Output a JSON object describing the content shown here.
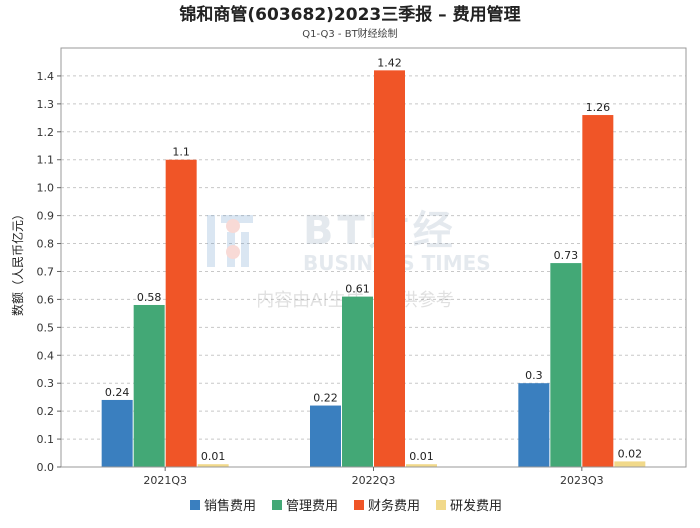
{
  "chart_data": {
    "type": "bar",
    "title": "锦和商管(603682)2023三季报 – 费用管理",
    "subtitle": "Q1-Q3 - BT财经绘制",
    "xlabel": "",
    "ylabel": "数额（人民币亿元）",
    "ylim": [
      0,
      1.5
    ],
    "yticks": [
      0.0,
      0.1,
      0.2,
      0.3,
      0.4,
      0.5,
      0.6,
      0.7,
      0.8,
      0.9,
      1.0,
      1.1,
      1.2,
      1.3,
      1.4
    ],
    "ytick_labels": [
      "0.0",
      "0.1",
      "0.2",
      "0.3",
      "0.4",
      "0.5",
      "0.6",
      "0.7",
      "0.8",
      "0.9",
      "1.0",
      "1.1",
      "1.2",
      "1.3",
      "1.4"
    ],
    "grid": true,
    "legend_position": "bottom",
    "categories": [
      "2021Q3",
      "2022Q3",
      "2023Q3"
    ],
    "series": [
      {
        "name": "销售费用",
        "color": "#3a7fbf",
        "values": [
          0.24,
          0.22,
          0.3
        ],
        "labels": [
          "0.24",
          "0.22",
          "0.3"
        ]
      },
      {
        "name": "管理费用",
        "color": "#43a876",
        "values": [
          0.58,
          0.61,
          0.73
        ],
        "labels": [
          "0.58",
          "0.61",
          "0.73"
        ]
      },
      {
        "name": "财务费用",
        "color": "#f05527",
        "values": [
          1.1,
          1.42,
          1.26
        ],
        "labels": [
          "1.1",
          "1.42",
          "1.26"
        ]
      },
      {
        "name": "研发费用",
        "color": "#f1d98a",
        "values": [
          0.01,
          0.01,
          0.02
        ],
        "labels": [
          "0.01",
          "0.01",
          "0.02"
        ]
      }
    ]
  },
  "watermark": {
    "brand_cn": "BT财经",
    "brand_en": "BUSINESS TIMES",
    "notice": "内容由AI生成，仅供参考"
  }
}
